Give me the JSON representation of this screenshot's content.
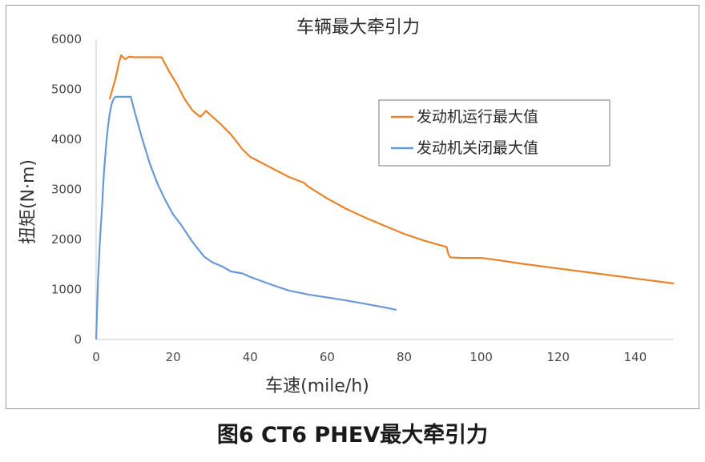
{
  "caption": "图6 CT6 PHEV最大牵引力",
  "chart_data": {
    "type": "line",
    "title": "车辆最大牵引力",
    "xlabel": "车速(mile/h)",
    "ylabel": "扭矩(N·m)",
    "xlim": [
      0,
      150
    ],
    "ylim": [
      0,
      6000
    ],
    "xticks": [
      0,
      20,
      40,
      60,
      80,
      100,
      120,
      140
    ],
    "yticks": [
      0,
      1000,
      2000,
      3000,
      4000,
      5000,
      6000
    ],
    "grid": false,
    "legend_position": "right",
    "series": [
      {
        "name": "发动机运行最大值",
        "color": "#E8832A",
        "x": [
          3.5,
          5,
          6,
          6.5,
          7.5,
          8.5,
          10,
          12,
          15,
          17,
          19,
          21,
          23,
          25,
          27,
          28,
          28.5,
          29.5,
          32,
          35,
          38,
          40,
          45,
          50,
          54,
          55,
          60,
          65,
          70,
          75,
          80,
          85,
          90,
          91,
          91.5,
          92,
          95,
          100,
          105,
          110,
          115,
          120,
          130,
          140,
          150
        ],
        "y": [
          4800,
          5200,
          5550,
          5680,
          5600,
          5650,
          5640,
          5640,
          5640,
          5640,
          5350,
          5100,
          4800,
          4580,
          4450,
          4520,
          4570,
          4500,
          4330,
          4100,
          3800,
          3650,
          3450,
          3250,
          3130,
          3060,
          2820,
          2610,
          2430,
          2270,
          2110,
          1980,
          1870,
          1850,
          1700,
          1640,
          1630,
          1630,
          1580,
          1520,
          1470,
          1420,
          1320,
          1220,
          1120
        ]
      },
      {
        "name": "发动机关闭最大值",
        "color": "#6A9AD5",
        "x": [
          0,
          0.5,
          1,
          1.5,
          2,
          2.5,
          3,
          3.5,
          4,
          4.5,
          5,
          9,
          10,
          12,
          14,
          16,
          18,
          20,
          22,
          25,
          28,
          30,
          33,
          35,
          38,
          40,
          45,
          50,
          55,
          60,
          65,
          70,
          75,
          78
        ],
        "y": [
          0,
          1200,
          2000,
          2600,
          3300,
          3800,
          4200,
          4500,
          4700,
          4800,
          4850,
          4850,
          4550,
          4000,
          3500,
          3100,
          2780,
          2500,
          2300,
          1950,
          1660,
          1550,
          1450,
          1360,
          1320,
          1250,
          1110,
          980,
          900,
          840,
          780,
          710,
          640,
          590
        ]
      }
    ]
  }
}
